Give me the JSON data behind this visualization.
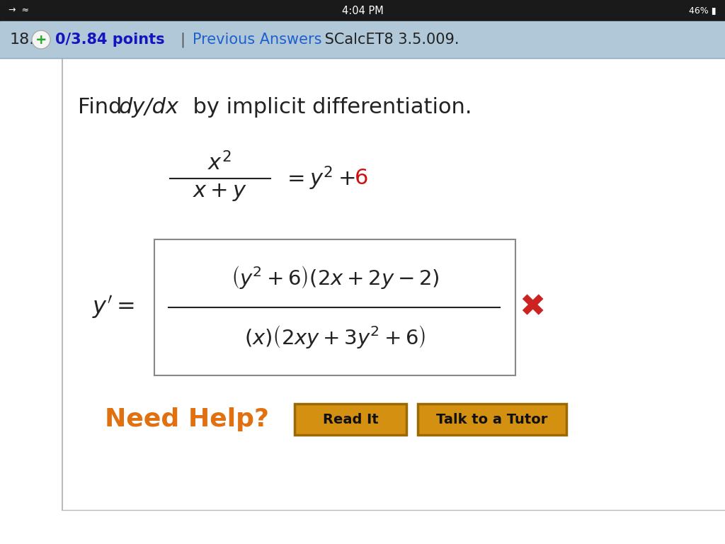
{
  "bg_color": "#ffffff",
  "status_bar_bg": "#1a1a1a",
  "status_bar_text": "4:04 PM",
  "status_bar_right": "46%",
  "header_bg": "#b0c8d8",
  "header_number": "18.",
  "header_points_color": "#1515c0",
  "header_points_text": "0/3.84 points",
  "header_pipe_color": "#555555",
  "header_prev_color": "#2060cc",
  "header_prev_text": "Previous Answers",
  "header_scalc_text": " SCalcET8 3.5.009.",
  "header_scalc_color": "#222222",
  "red_6_color": "#cc1111",
  "x_mark_color": "#cc2222",
  "need_help_color": "#e07010",
  "button_bg": "#d49010",
  "button_border": "#9a6a00",
  "button1_text": "Read It",
  "button2_text": "Talk to a Tutor",
  "panel_border_color": "#bbbbbb",
  "circle_color": "#f5f5f5",
  "circle_plus_color": "#22aa22"
}
